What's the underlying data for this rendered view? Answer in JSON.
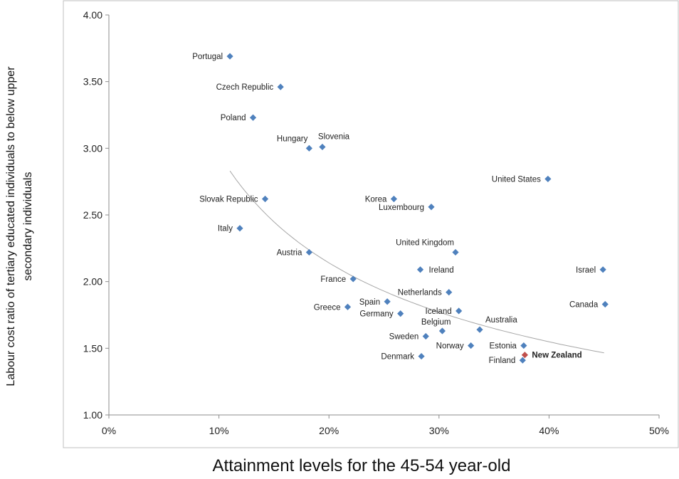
{
  "chart_data": {
    "type": "scatter",
    "xlabel": "Attainment levels for the 45-54 year-old",
    "ylabel_lines": [
      "Labour cost ratio of tertiary educated individuals to below upper",
      "secondary individuals"
    ],
    "xlim": [
      0,
      0.5
    ],
    "ylim": [
      1.0,
      4.0
    ],
    "x_ticks": [
      0,
      0.1,
      0.2,
      0.3,
      0.4,
      0.5
    ],
    "x_tick_labels": [
      "0%",
      "10%",
      "20%",
      "30%",
      "40%",
      "50%"
    ],
    "y_ticks": [
      1.0,
      1.5,
      2.0,
      2.5,
      3.0,
      3.5,
      4.0
    ],
    "y_tick_labels": [
      "1.00",
      "1.50",
      "2.00",
      "2.50",
      "3.00",
      "3.50",
      "4.00"
    ],
    "grid": false,
    "colors": {
      "points": "#4f81bd",
      "highlight": "#c0504d",
      "trend": "#a6a6a6",
      "frame": "#bfbfbf"
    },
    "trendline": {
      "type": "curve",
      "x_start": 0.11,
      "x_end": 0.45
    },
    "points": [
      {
        "label": "Portugal",
        "x": 0.11,
        "y": 3.69,
        "pos": "left"
      },
      {
        "label": "Czech Republic",
        "x": 0.156,
        "y": 3.46,
        "pos": "left"
      },
      {
        "label": "Poland",
        "x": 0.131,
        "y": 3.23,
        "pos": "left"
      },
      {
        "label": "Hungary",
        "x": 0.182,
        "y": 3.0,
        "pos": "left-up"
      },
      {
        "label": "Slovenia",
        "x": 0.194,
        "y": 3.01,
        "pos": "right-up"
      },
      {
        "label": "United States",
        "x": 0.399,
        "y": 2.77,
        "pos": "left"
      },
      {
        "label": "Slovak Republic",
        "x": 0.142,
        "y": 2.62,
        "pos": "left"
      },
      {
        "label": "Korea",
        "x": 0.259,
        "y": 2.62,
        "pos": "left"
      },
      {
        "label": "Luxembourg",
        "x": 0.293,
        "y": 2.56,
        "pos": "left"
      },
      {
        "label": "Italy",
        "x": 0.119,
        "y": 2.4,
        "pos": "left"
      },
      {
        "label": "United Kingdom",
        "x": 0.315,
        "y": 2.22,
        "pos": "left-up"
      },
      {
        "label": "Austria",
        "x": 0.182,
        "y": 2.22,
        "pos": "left"
      },
      {
        "label": "Ireland",
        "x": 0.283,
        "y": 2.09,
        "pos": "right-up"
      },
      {
        "label": "Israel",
        "x": 0.449,
        "y": 2.09,
        "pos": "left"
      },
      {
        "label": "France",
        "x": 0.222,
        "y": 2.02,
        "pos": "left"
      },
      {
        "label": "Netherlands",
        "x": 0.309,
        "y": 1.92,
        "pos": "left"
      },
      {
        "label": "Canada",
        "x": 0.451,
        "y": 1.83,
        "pos": "left"
      },
      {
        "label": "Spain",
        "x": 0.253,
        "y": 1.85,
        "pos": "left"
      },
      {
        "label": "Greece",
        "x": 0.217,
        "y": 1.81,
        "pos": "left"
      },
      {
        "label": "Germany",
        "x": 0.265,
        "y": 1.76,
        "pos": "left"
      },
      {
        "label": "Iceland",
        "x": 0.318,
        "y": 1.78,
        "pos": "left"
      },
      {
        "label": "Belgium",
        "x": 0.303,
        "y": 1.63,
        "pos": "left-up"
      },
      {
        "label": "Australia",
        "x": 0.337,
        "y": 1.64,
        "pos": "right-up"
      },
      {
        "label": "Sweden",
        "x": 0.288,
        "y": 1.59,
        "pos": "left"
      },
      {
        "label": "Norway",
        "x": 0.329,
        "y": 1.52,
        "pos": "left"
      },
      {
        "label": "Estonia",
        "x": 0.377,
        "y": 1.52,
        "pos": "left"
      },
      {
        "label": "New Zealand",
        "x": 0.378,
        "y": 1.45,
        "pos": "right",
        "highlight": true,
        "bold": true
      },
      {
        "label": "Denmark",
        "x": 0.284,
        "y": 1.44,
        "pos": "left"
      },
      {
        "label": "Finland",
        "x": 0.376,
        "y": 1.41,
        "pos": "left"
      }
    ]
  }
}
